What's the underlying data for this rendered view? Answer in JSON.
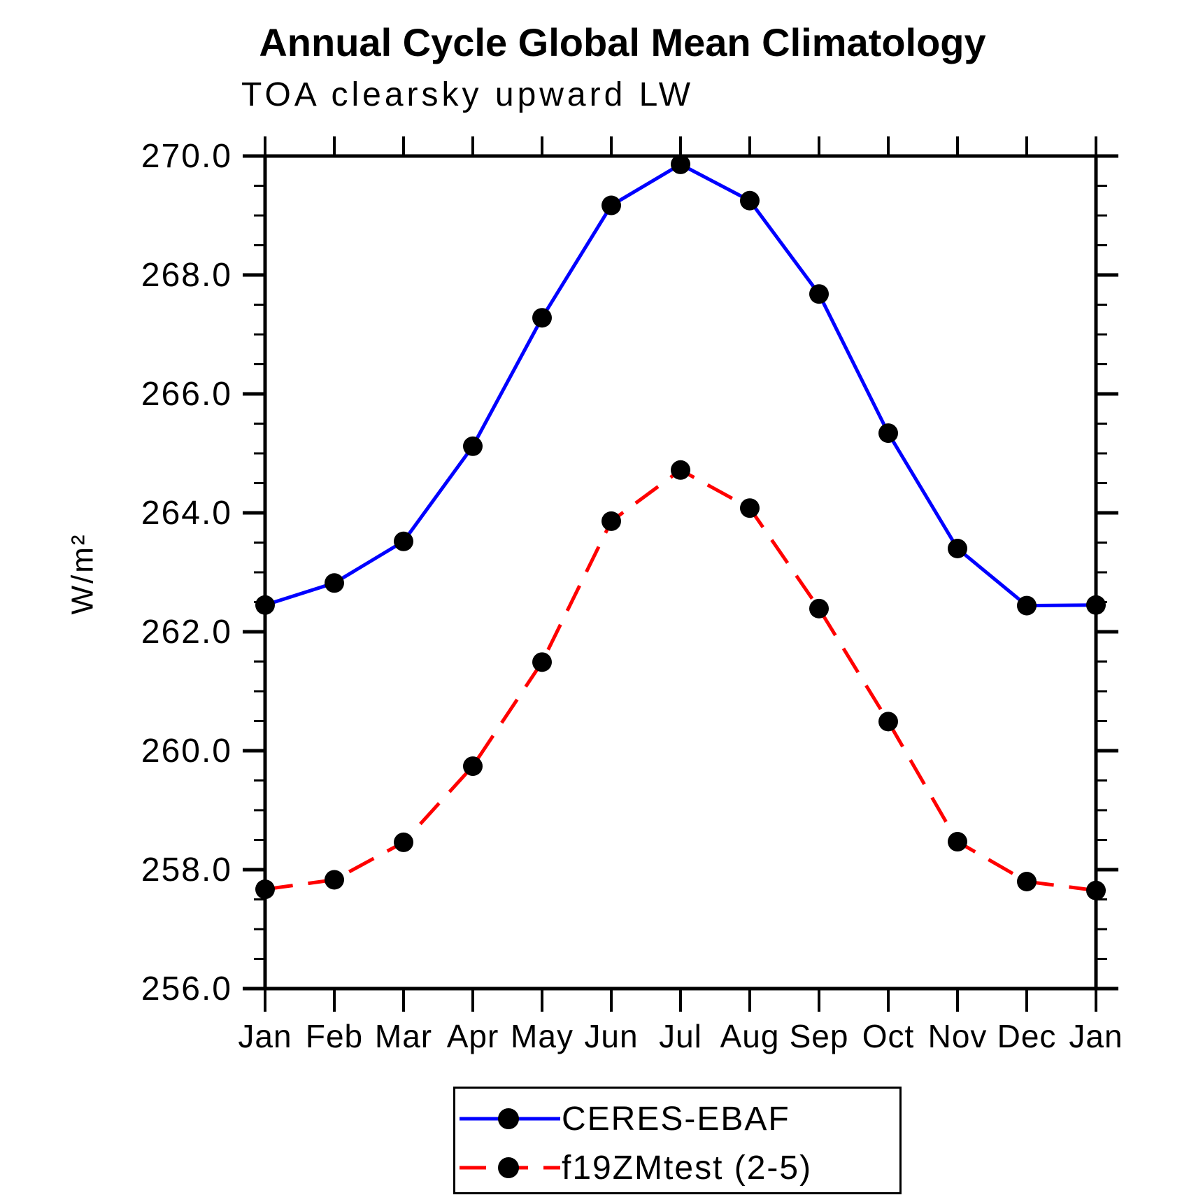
{
  "page": {
    "background": "#ffffff"
  },
  "chart": {
    "title": "Annual Cycle Global Mean Climatology",
    "subtitle": "TOA clearsky upward LW",
    "ylabel": "W/m²"
  },
  "chart_data": {
    "type": "line",
    "title": "Annual Cycle Global Mean Climatology",
    "subtitle": "TOA clearsky upward LW",
    "xlabel": "",
    "ylabel": "W/m²",
    "categories": [
      "Jan",
      "Feb",
      "Mar",
      "Apr",
      "May",
      "Jun",
      "Jul",
      "Aug",
      "Sep",
      "Oct",
      "Nov",
      "Dec",
      "Jan"
    ],
    "y_axis": {
      "min": 256.0,
      "max": 270.0,
      "major_step": 2.0,
      "minor_step": 0.5,
      "major_ticks": [
        270.0,
        268.0,
        266.0,
        264.0,
        262.0,
        260.0,
        258.0,
        256.0
      ],
      "tick_labels": [
        "270.0",
        "268.0",
        "266.0",
        "264.0",
        "262.0",
        "260.0",
        "258.0",
        "256.0"
      ]
    },
    "grid": false,
    "legend_position": "bottom-center",
    "series": [
      {
        "name": "CERES-EBAF",
        "color": "#0000ff",
        "style": "solid",
        "marker": "filled-circle",
        "marker_color": "#000000",
        "values": [
          262.45,
          262.82,
          263.52,
          265.12,
          267.28,
          269.17,
          269.86,
          269.25,
          267.68,
          265.34,
          263.4,
          262.44,
          262.45
        ]
      },
      {
        "name": "f19ZMtest (2-5)",
        "color": "#ff0000",
        "style": "dashed",
        "marker": "filled-circle",
        "marker_color": "#000000",
        "values": [
          257.67,
          257.83,
          258.46,
          259.74,
          261.49,
          263.86,
          264.72,
          264.08,
          262.39,
          260.49,
          258.47,
          257.8,
          257.65
        ]
      }
    ]
  }
}
